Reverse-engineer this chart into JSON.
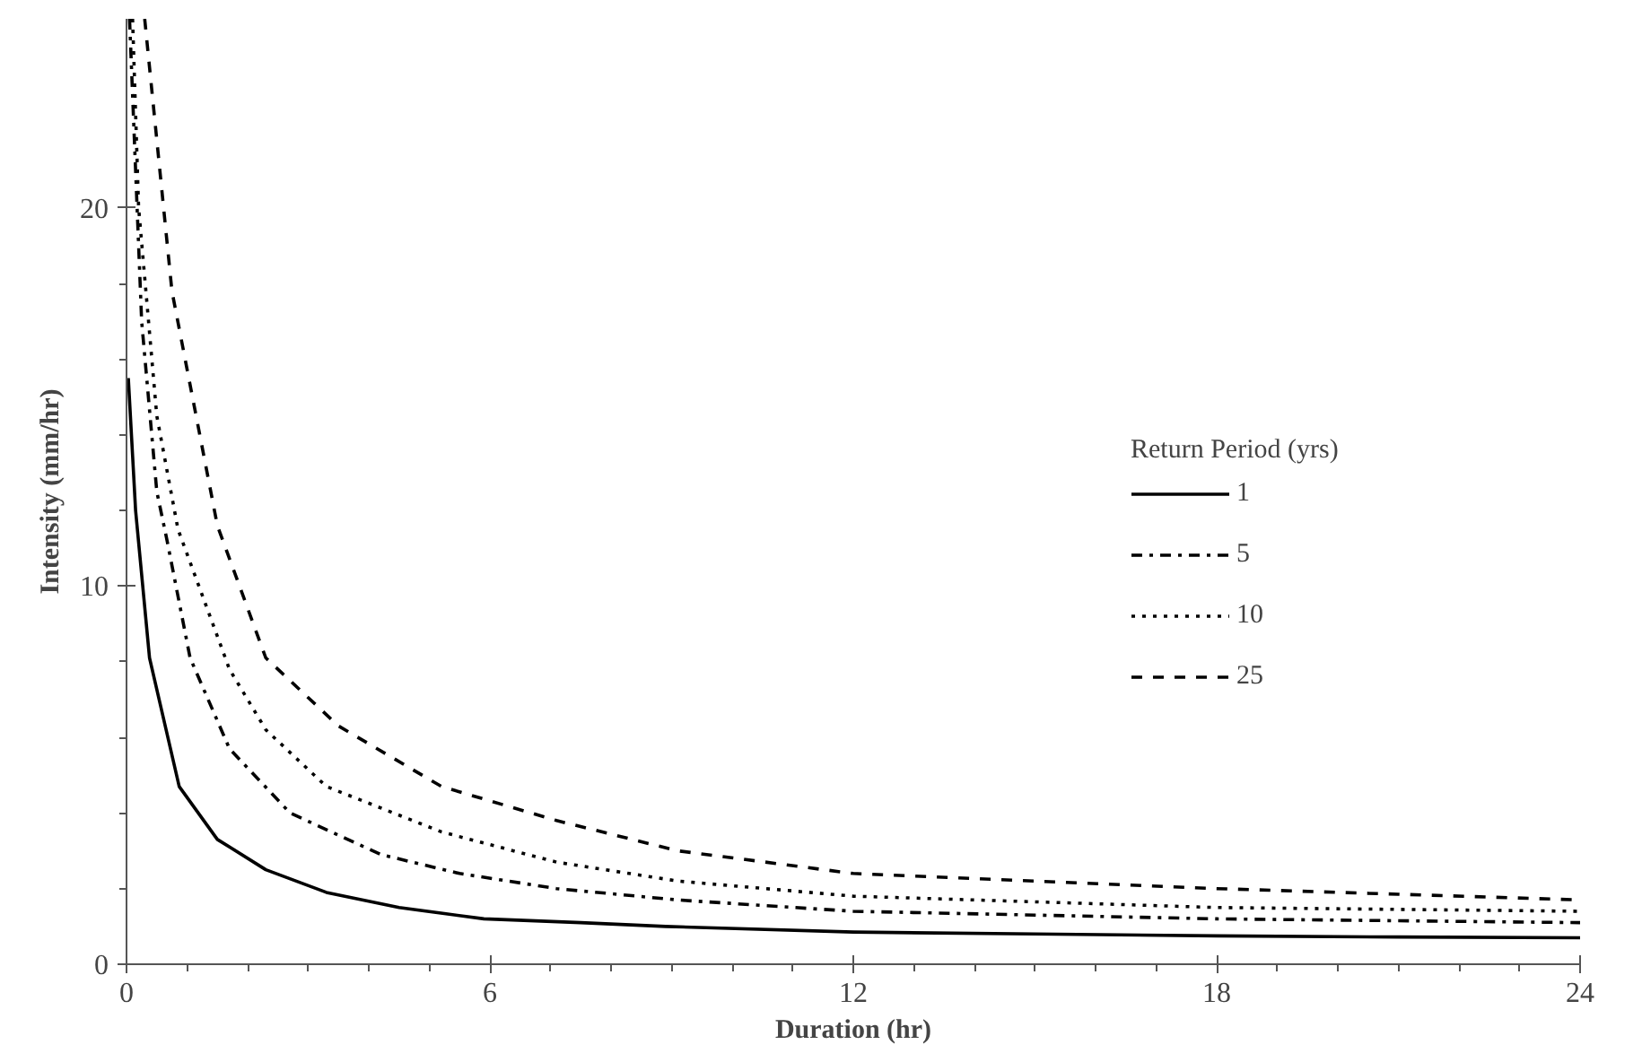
{
  "chart_data": {
    "type": "line",
    "xlabel": "Duration (hr)",
    "ylabel": "Intensity (mm/hr)",
    "legend_title": "Return Period (yrs)",
    "legend": "right",
    "grid": false,
    "marker": "none",
    "xlim": [
      0,
      24
    ],
    "xticks": [
      0,
      6,
      12,
      18,
      24
    ],
    "ylim": [
      0,
      25
    ],
    "yticks": [
      0,
      10,
      20
    ],
    "series": [
      {
        "name": "1",
        "color": "#000000",
        "line_style": "solid",
        "x": [
          0.03,
          0.15,
          0.38,
          0.87,
          1.5,
          2.3,
          3.3,
          4.5,
          5.9,
          7.5,
          8.9,
          12,
          15,
          18,
          21,
          24
        ],
        "values": [
          15.5,
          12.0,
          8.1,
          4.7,
          3.3,
          2.5,
          1.9,
          1.5,
          1.2,
          1.1,
          1.0,
          0.85,
          0.8,
          0.75,
          0.72,
          0.7
        ]
      },
      {
        "name": "5",
        "color": "#000000",
        "line_style": "dashdot",
        "x": [
          0.05,
          0.25,
          0.5,
          0.67,
          1.05,
          1.7,
          2.7,
          4.2,
          5.5,
          7.1,
          9.1,
          12,
          15,
          18,
          21,
          24
        ],
        "values": [
          25.0,
          17.0,
          12.5,
          11.2,
          8.1,
          5.7,
          4.0,
          2.9,
          2.4,
          2.0,
          1.7,
          1.4,
          1.3,
          1.2,
          1.15,
          1.1
        ]
      },
      {
        "name": "10",
        "color": "#000000",
        "line_style": "dotted",
        "x": [
          0.1,
          0.2,
          0.5,
          0.85,
          1.7,
          2.3,
          3.3,
          5.2,
          7.1,
          9.1,
          12,
          15,
          18,
          21,
          24
        ],
        "values": [
          25.0,
          20.0,
          14.5,
          11.5,
          7.8,
          6.2,
          4.7,
          3.5,
          2.7,
          2.2,
          1.8,
          1.65,
          1.5,
          1.45,
          1.4
        ]
      },
      {
        "name": "25",
        "color": "#000000",
        "line_style": "dashed",
        "x": [
          0.3,
          0.75,
          1.5,
          2.3,
          3.5,
          5.2,
          7.1,
          9.1,
          12,
          15,
          18,
          21,
          24
        ],
        "values": [
          25.0,
          17.8,
          11.6,
          8.1,
          6.3,
          4.7,
          3.8,
          3.0,
          2.4,
          2.2,
          2.0,
          1.85,
          1.7
        ]
      }
    ]
  }
}
